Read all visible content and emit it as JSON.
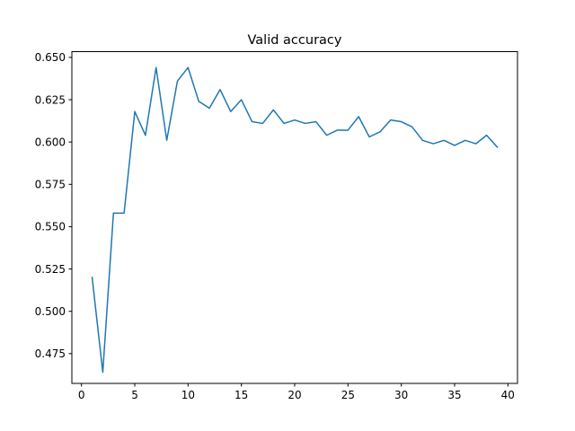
{
  "chart_data": {
    "type": "line",
    "title": "Valid accuracy",
    "xlabel": "",
    "ylabel": "",
    "x": [
      1,
      2,
      3,
      4,
      5,
      6,
      7,
      8,
      9,
      10,
      11,
      12,
      13,
      14,
      15,
      16,
      17,
      18,
      19,
      20,
      21,
      22,
      23,
      24,
      25,
      26,
      27,
      28,
      29,
      30,
      31,
      32,
      33,
      34,
      35,
      36,
      37,
      38,
      39
    ],
    "series": [
      {
        "color": "#1f77b4",
        "values": [
          0.52,
          0.464,
          0.558,
          0.558,
          0.618,
          0.604,
          0.644,
          0.601,
          0.636,
          0.644,
          0.624,
          0.62,
          0.631,
          0.618,
          0.625,
          0.612,
          0.611,
          0.619,
          0.611,
          0.613,
          0.611,
          0.612,
          0.604,
          0.607,
          0.607,
          0.615,
          0.603,
          0.606,
          0.613,
          0.612,
          0.609,
          0.601,
          0.599,
          0.601,
          0.598,
          0.601,
          0.599,
          0.604,
          0.597
        ]
      }
    ],
    "xlim": [
      -0.9,
      40.9
    ],
    "ylim": [
      0.4574,
      0.6534
    ],
    "xticks": [
      0,
      5,
      10,
      15,
      20,
      25,
      30,
      35,
      40
    ],
    "xtick_labels": [
      "0",
      "5",
      "10",
      "15",
      "20",
      "25",
      "30",
      "35",
      "40"
    ],
    "yticks": [
      0.475,
      0.5,
      0.525,
      0.55,
      0.575,
      0.6,
      0.625,
      0.65
    ],
    "ytick_labels": [
      "0.475",
      "0.500",
      "0.525",
      "0.550",
      "0.575",
      "0.600",
      "0.625",
      "0.650"
    ],
    "grid": false,
    "legend": "none"
  }
}
